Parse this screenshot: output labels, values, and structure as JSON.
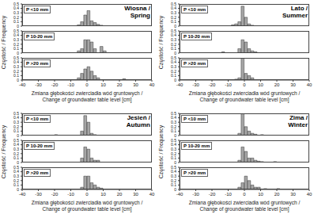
{
  "chart_data": [
    {
      "type": "histogram",
      "title": "Wiosna / Spring",
      "y_label": "Częstość / Frequency",
      "x_label": [
        "Zmiana głębokości zwierciadła wód gruntowych /",
        "Change of groundwater table level [cm]"
      ],
      "color": "#a6a6a6",
      "xlim": [
        -40,
        40
      ],
      "xticks": [
        -40,
        -30,
        -20,
        -10,
        0,
        10,
        20,
        30,
        40
      ],
      "ylim": [
        0,
        0.5
      ],
      "yticks": [
        0,
        0.1,
        0.2,
        0.3,
        0.4,
        0.5
      ],
      "bins": [
        -24,
        -22,
        -20,
        -18,
        -16,
        -14,
        -12,
        -10,
        -8,
        -6,
        -4,
        -2,
        0,
        2,
        4,
        6,
        8,
        10,
        12,
        14,
        16,
        18,
        20,
        22,
        24,
        26
      ],
      "series": [
        {
          "name": "P <10 mm",
          "values": [
            0,
            0,
            0,
            0,
            0,
            0,
            0,
            0,
            0,
            0.03,
            0.1,
            0.25,
            0.35,
            0.12,
            0.08,
            0.04,
            0.02,
            0,
            0,
            0,
            0,
            0,
            0,
            0,
            0
          ]
        },
        {
          "name": "P 10-20 mm",
          "values": [
            0,
            0,
            0,
            0,
            0,
            0,
            0,
            0,
            0,
            0.05,
            0.1,
            0.3,
            0.3,
            0.25,
            0.1,
            0,
            0.15,
            0.05,
            0,
            0,
            0,
            0,
            0,
            0,
            0
          ]
        },
        {
          "name": "P >20 mm",
          "values": [
            0,
            0,
            0,
            0,
            0,
            0,
            0,
            0,
            0,
            0.05,
            0.15,
            0.25,
            0.3,
            0.2,
            0.1,
            0.05,
            0,
            0,
            0,
            0,
            0,
            0,
            0,
            0.03,
            0
          ]
        }
      ]
    },
    {
      "type": "histogram",
      "title": "Lato / Summer",
      "y_label": "Częstość / Frequency",
      "x_label": [
        "Zmiana głębokości zwierciadła wód gruntowych /",
        "Change of groundwater table level [cm]"
      ],
      "color": "#a6a6a6",
      "xlim": [
        -40,
        40
      ],
      "xticks": [
        -40,
        -30,
        -20,
        -10,
        0,
        10,
        20,
        30,
        40
      ],
      "ylim": [
        0,
        0.5
      ],
      "yticks": [
        0,
        0.1,
        0.2,
        0.3,
        0.4,
        0.5
      ],
      "bins": [
        -24,
        -22,
        -20,
        -18,
        -16,
        -14,
        -12,
        -10,
        -8,
        -6,
        -4,
        -2,
        0,
        2,
        4,
        6,
        8,
        10,
        12,
        14,
        16,
        18,
        20,
        22,
        24,
        26
      ],
      "series": [
        {
          "name": "P <10 mm",
          "values": [
            0,
            0,
            0,
            0,
            0,
            0,
            0,
            0,
            0.03,
            0.05,
            0.1,
            0.45,
            0.2,
            0.05,
            0.02,
            0,
            0,
            0,
            0,
            0,
            0,
            0,
            0,
            0,
            0
          ]
        },
        {
          "name": "P 10-20 mm",
          "values": [
            0,
            0,
            0,
            0,
            0,
            0.03,
            0,
            0,
            0,
            0,
            0.1,
            0.3,
            0.25,
            0.1,
            0.05,
            0.03,
            0,
            0,
            0,
            0,
            0,
            0,
            0,
            0,
            0
          ]
        },
        {
          "name": "P >20 mm",
          "values": [
            0,
            0,
            0,
            0,
            0,
            0,
            0,
            0,
            0,
            0.02,
            0.05,
            0.5,
            0.15,
            0.1,
            0.05,
            0,
            0,
            0,
            0,
            0,
            0,
            0,
            0,
            0,
            0
          ]
        }
      ]
    },
    {
      "type": "histogram",
      "title": "Jesień / Autumn",
      "y_label": "Częstość / Frequency",
      "x_label": [
        "Zmiana głębokości zwierciadła wód gruntowych /",
        "Change of groundwater table level [cm]"
      ],
      "color": "#a6a6a6",
      "xlim": [
        -40,
        40
      ],
      "xticks": [
        -40,
        -30,
        -20,
        -10,
        0,
        10,
        20,
        30,
        40
      ],
      "ylim": [
        0,
        0.5
      ],
      "yticks": [
        0,
        0.1,
        0.2,
        0.3,
        0.4,
        0.5
      ],
      "bins": [
        -24,
        -22,
        -20,
        -18,
        -16,
        -14,
        -12,
        -10,
        -8,
        -6,
        -4,
        -2,
        0,
        2,
        4,
        6,
        8,
        10,
        12,
        14,
        16,
        18,
        20,
        22,
        24,
        26
      ],
      "series": [
        {
          "name": "P <10 mm",
          "values": [
            0,
            0,
            0.02,
            0,
            0,
            0,
            0,
            0,
            0,
            0,
            0.1,
            0.45,
            0.3,
            0.05,
            0.02,
            0,
            0,
            0,
            0,
            0,
            0,
            0,
            0,
            0,
            0
          ]
        },
        {
          "name": "P 10-20 mm",
          "values": [
            0,
            0,
            0,
            0,
            0,
            0,
            0,
            0,
            0,
            0,
            0.1,
            0.35,
            0.3,
            0.1,
            0.05,
            0.05,
            0,
            0,
            0,
            0,
            0,
            0,
            0,
            0,
            0
          ]
        },
        {
          "name": "P >20 mm",
          "values": [
            0,
            0,
            0,
            0,
            0,
            0,
            0,
            0,
            0,
            0,
            0.05,
            0.3,
            0.3,
            0.15,
            0.1,
            0.05,
            0.03,
            0,
            0,
            0,
            0,
            0,
            0,
            0,
            0
          ]
        }
      ]
    },
    {
      "type": "histogram",
      "title": "Zima / Winter",
      "y_label": "Częstość / Frequency",
      "x_label": [
        "Zmiana głębokości zwierciadła wód gruntowych /",
        "Change of groundwater table level [cm]"
      ],
      "color": "#a6a6a6",
      "xlim": [
        -40,
        40
      ],
      "xticks": [
        -40,
        -30,
        -20,
        -10,
        0,
        10,
        20,
        30,
        40
      ],
      "ylim": [
        0,
        0.5
      ],
      "yticks": [
        0,
        0.1,
        0.2,
        0.3,
        0.4,
        0.5
      ],
      "bins": [
        -24,
        -22,
        -20,
        -18,
        -16,
        -14,
        -12,
        -10,
        -8,
        -6,
        -4,
        -2,
        0,
        2,
        4,
        6,
        8,
        10,
        12,
        14,
        16,
        18,
        20,
        22,
        24,
        26
      ],
      "series": [
        {
          "name": "P <10 mm",
          "values": [
            0,
            0,
            0,
            0,
            0,
            0,
            0,
            0,
            0,
            0,
            0.05,
            0.5,
            0.2,
            0.1,
            0.05,
            0.03,
            0,
            0.02,
            0,
            0,
            0,
            0,
            0,
            0,
            0
          ]
        },
        {
          "name": "P 10-20 mm",
          "values": [
            0,
            0,
            0,
            0,
            0,
            0,
            0,
            0,
            0,
            0,
            0.05,
            0.35,
            0.25,
            0.1,
            0.1,
            0.05,
            0.03,
            0.02,
            0,
            0,
            0,
            0.02,
            0,
            0,
            0
          ]
        },
        {
          "name": "P >20 mm",
          "values": [
            0,
            0,
            0,
            0,
            0,
            0,
            0,
            0,
            0,
            0,
            0.05,
            0.15,
            0.3,
            0.2,
            0.1,
            0.05,
            0.05,
            0,
            0.02,
            0,
            0,
            0,
            0.02,
            0,
            0
          ]
        }
      ]
    }
  ]
}
